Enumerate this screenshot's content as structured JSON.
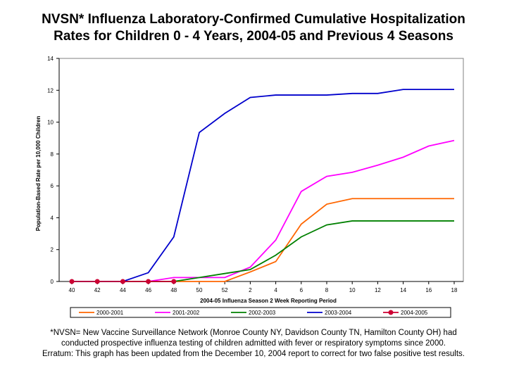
{
  "title_line1": "NVSN* Influenza Laboratory-Confirmed Cumulative Hospitalization",
  "title_line2": "Rates for Children 0 - 4 Years, 2004-05 and Previous 4 Seasons",
  "footnote_line1": "*NVSN= New Vaccine Surveillance Network (Monroe County NY, Davidson County TN, Hamilton County OH) had",
  "footnote_line2": "conducted prospective influenza testing of children admitted with fever or respiratory symptoms since 2000.",
  "footnote_line3": "Erratum:  This graph has been updated from the December 10, 2004  report to correct for two false positive test results.",
  "chart_data": {
    "type": "line",
    "xlabel": "2004-05 Influenza Season 2 Week Reporting Period",
    "ylabel": "Population-Based Rate per 10,000 Children",
    "categories": [
      "40",
      "42",
      "44",
      "46",
      "48",
      "50",
      "52",
      "2",
      "4",
      "6",
      "8",
      "10",
      "12",
      "14",
      "16",
      "18"
    ],
    "ylim": [
      0,
      14
    ],
    "yticks": [
      0,
      2,
      4,
      6,
      8,
      10,
      12,
      14
    ],
    "grid": false,
    "legend_position": "bottom",
    "series": [
      {
        "name": "2000-2001",
        "color": "#ff6600",
        "marker": "none",
        "values": [
          0,
          0,
          0,
          0,
          0,
          0,
          0,
          0.6,
          1.25,
          3.6,
          4.85,
          5.2,
          5.2,
          5.2,
          5.2,
          5.2
        ]
      },
      {
        "name": "2001-2002",
        "color": "#ff00ff",
        "marker": "none",
        "values": [
          0,
          0,
          0,
          0,
          0.25,
          0.25,
          0.25,
          0.9,
          2.6,
          5.65,
          6.6,
          6.85,
          7.3,
          7.8,
          8.5,
          8.85
        ]
      },
      {
        "name": "2002-2003",
        "color": "#008000",
        "marker": "none",
        "values": [
          0,
          0,
          0,
          0,
          0,
          0.25,
          0.5,
          0.75,
          1.65,
          2.8,
          3.55,
          3.8,
          3.8,
          3.8,
          3.8,
          3.8
        ]
      },
      {
        "name": "2003-2004",
        "color": "#0000cc",
        "marker": "none",
        "values": [
          0,
          0,
          0,
          0.55,
          2.8,
          9.35,
          10.55,
          11.55,
          11.7,
          11.7,
          11.7,
          11.8,
          11.8,
          12.05,
          12.05,
          12.05
        ]
      },
      {
        "name": "2004-2005",
        "color": "#cc0033",
        "marker": "circle",
        "values": [
          0,
          0,
          0,
          0,
          0,
          null,
          null,
          null,
          null,
          null,
          null,
          null,
          null,
          null,
          null,
          null
        ]
      }
    ]
  }
}
